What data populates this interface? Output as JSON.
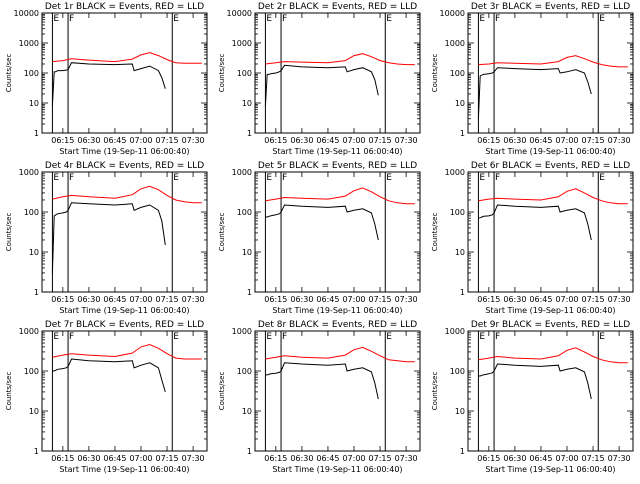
{
  "chart_data": [
    {
      "type": "line",
      "title": "Det 1r BLACK = Events, RED = LLD",
      "ylabel": "Counts/sec",
      "xlabel": "Start Time (19-Sep-11 06:00:40)",
      "yscale": "log",
      "ylim": [
        1,
        10000
      ],
      "y_ticks": [
        "1",
        "10",
        "100",
        "1000",
        "10000"
      ],
      "xlim": [
        "06:03",
        "07:38"
      ],
      "x_ticks": [
        "06:15",
        "06:30",
        "06:45",
        "07:00",
        "07:15",
        "07:30"
      ],
      "markers": [
        {
          "time": "06:09",
          "label": "E"
        },
        {
          "time": "06:18",
          "label": "F"
        },
        {
          "time": "07:18",
          "label": "E"
        }
      ],
      "series": [
        {
          "color": "#ff0000",
          "x": [
            "06:09",
            "06:15",
            "06:20",
            "06:30",
            "06:45",
            "06:55",
            "07:00",
            "07:05",
            "07:10",
            "07:15",
            "07:20",
            "07:25",
            "07:30",
            "07:35"
          ],
          "values": [
            240,
            260,
            300,
            270,
            240,
            290,
            400,
            480,
            380,
            280,
            220,
            210,
            210,
            210
          ]
        },
        {
          "color": "#000000",
          "x": [
            "06:09",
            "06:10",
            "06:11",
            "06:12",
            "06:15",
            "06:17",
            "06:18",
            "06:20",
            "06:30",
            "06:45",
            "06:55",
            "06:56",
            "07:00",
            "07:05",
            "07:10",
            "07:12",
            "07:14"
          ],
          "values": [
            8,
            110,
            110,
            120,
            120,
            125,
            130,
            220,
            200,
            190,
            200,
            120,
            140,
            170,
            120,
            70,
            30
          ]
        }
      ]
    },
    {
      "type": "line",
      "title": "Det 2r BLACK = Events, RED = LLD",
      "ylabel": "Counts/sec",
      "xlabel": "Start Time (19-Sep-11 06:00:40)",
      "yscale": "log",
      "ylim": [
        1,
        10000
      ],
      "y_ticks": [
        "1",
        "10",
        "100",
        "1000",
        "10000"
      ],
      "xlim": [
        "06:03",
        "07:38"
      ],
      "x_ticks": [
        "06:15",
        "06:30",
        "06:45",
        "07:00",
        "07:15",
        "07:30"
      ],
      "markers": [
        {
          "time": "06:09",
          "label": "E"
        },
        {
          "time": "06:18",
          "label": "F"
        },
        {
          "time": "07:18",
          "label": "E"
        }
      ],
      "series": [
        {
          "color": "#ff0000",
          "x": [
            "06:09",
            "06:15",
            "06:20",
            "06:30",
            "06:45",
            "06:55",
            "07:00",
            "07:05",
            "07:10",
            "07:15",
            "07:20",
            "07:25",
            "07:30",
            "07:35"
          ],
          "values": [
            200,
            220,
            240,
            230,
            220,
            260,
            380,
            440,
            350,
            260,
            220,
            200,
            190,
            190
          ]
        },
        {
          "color": "#000000",
          "x": [
            "06:09",
            "06:10",
            "06:11",
            "06:12",
            "06:15",
            "06:17",
            "06:18",
            "06:20",
            "06:30",
            "06:45",
            "06:55",
            "06:56",
            "07:00",
            "07:05",
            "07:10",
            "07:12",
            "07:14"
          ],
          "values": [
            8,
            90,
            90,
            95,
            100,
            110,
            120,
            180,
            160,
            150,
            160,
            110,
            130,
            150,
            110,
            60,
            18
          ]
        }
      ]
    },
    {
      "type": "line",
      "title": "Det 3r BLACK = Events, RED = LLD",
      "ylabel": "Counts/sec",
      "xlabel": "Start Time (19-Sep-11 06:00:40)",
      "yscale": "log",
      "ylim": [
        1,
        10000
      ],
      "y_ticks": [
        "1",
        "10",
        "100",
        "1000",
        "10000"
      ],
      "xlim": [
        "06:03",
        "07:38"
      ],
      "x_ticks": [
        "06:15",
        "06:30",
        "06:45",
        "07:00",
        "07:15",
        "07:30"
      ],
      "markers": [
        {
          "time": "06:09",
          "label": "E"
        },
        {
          "time": "06:18",
          "label": "F"
        },
        {
          "time": "07:18",
          "label": "E"
        }
      ],
      "series": [
        {
          "color": "#ff0000",
          "x": [
            "06:09",
            "06:15",
            "06:20",
            "06:30",
            "06:45",
            "06:55",
            "07:00",
            "07:05",
            "07:10",
            "07:15",
            "07:20",
            "07:25",
            "07:30",
            "07:35"
          ],
          "values": [
            190,
            200,
            220,
            210,
            200,
            240,
            330,
            380,
            300,
            230,
            190,
            170,
            160,
            160
          ]
        },
        {
          "color": "#000000",
          "x": [
            "06:09",
            "06:10",
            "06:11",
            "06:12",
            "06:15",
            "06:17",
            "06:18",
            "06:20",
            "06:30",
            "06:45",
            "06:55",
            "06:56",
            "07:00",
            "07:05",
            "07:10",
            "07:12",
            "07:14"
          ],
          "values": [
            3,
            80,
            85,
            90,
            95,
            100,
            110,
            150,
            140,
            130,
            140,
            100,
            110,
            130,
            100,
            50,
            20
          ]
        }
      ]
    },
    {
      "type": "line",
      "title": "Det 4r BLACK = Events, RED = LLD",
      "ylabel": "Counts/sec",
      "xlabel": "Start Time (19-Sep-11 06:00:40)",
      "yscale": "log",
      "ylim": [
        1,
        1000
      ],
      "y_ticks": [
        "1",
        "10",
        "100",
        "1000"
      ],
      "xlim": [
        "06:03",
        "07:38"
      ],
      "x_ticks": [
        "06:15",
        "06:30",
        "06:45",
        "07:00",
        "07:15",
        "07:30"
      ],
      "markers": [
        {
          "time": "06:09",
          "label": "E"
        },
        {
          "time": "06:18",
          "label": "F"
        },
        {
          "time": "07:18",
          "label": "E"
        }
      ],
      "series": [
        {
          "color": "#ff0000",
          "x": [
            "06:09",
            "06:15",
            "06:20",
            "06:30",
            "06:45",
            "06:55",
            "07:00",
            "07:05",
            "07:10",
            "07:15",
            "07:20",
            "07:25",
            "07:30",
            "07:35"
          ],
          "values": [
            210,
            240,
            260,
            240,
            220,
            270,
            380,
            440,
            360,
            260,
            200,
            180,
            170,
            170
          ]
        },
        {
          "color": "#000000",
          "x": [
            "06:09",
            "06:10",
            "06:11",
            "06:12",
            "06:15",
            "06:17",
            "06:18",
            "06:20",
            "06:30",
            "06:45",
            "06:55",
            "06:56",
            "07:00",
            "07:05",
            "07:10",
            "07:12",
            "07:14"
          ],
          "values": [
            3,
            80,
            85,
            90,
            95,
            100,
            110,
            170,
            160,
            150,
            160,
            110,
            130,
            150,
            110,
            60,
            15
          ]
        }
      ]
    },
    {
      "type": "line",
      "title": "Det 5r BLACK = Events, RED = LLD",
      "ylabel": "Counts/sec",
      "xlabel": "Start Time (19-Sep-11 06:00:40)",
      "yscale": "log",
      "ylim": [
        1,
        1000
      ],
      "y_ticks": [
        "1",
        "10",
        "100",
        "1000"
      ],
      "xlim": [
        "06:03",
        "07:38"
      ],
      "x_ticks": [
        "06:15",
        "06:30",
        "06:45",
        "07:00",
        "07:15",
        "07:30"
      ],
      "markers": [
        {
          "time": "06:09",
          "label": "E"
        },
        {
          "time": "06:18",
          "label": "F"
        },
        {
          "time": "07:18",
          "label": "E"
        }
      ],
      "series": [
        {
          "color": "#ff0000",
          "x": [
            "06:09",
            "06:15",
            "06:20",
            "06:30",
            "06:45",
            "06:55",
            "07:00",
            "07:05",
            "07:10",
            "07:15",
            "07:20",
            "07:25",
            "07:30",
            "07:35"
          ],
          "values": [
            190,
            210,
            230,
            220,
            210,
            250,
            340,
            400,
            320,
            240,
            190,
            170,
            160,
            160
          ]
        },
        {
          "color": "#000000",
          "x": [
            "06:09",
            "06:10",
            "06:11",
            "06:12",
            "06:15",
            "06:17",
            "06:18",
            "06:20",
            "06:30",
            "06:45",
            "06:55",
            "06:56",
            "07:00",
            "07:05",
            "07:10",
            "07:12",
            "07:14"
          ],
          "values": [
            75,
            75,
            78,
            80,
            85,
            90,
            100,
            150,
            140,
            130,
            140,
            100,
            110,
            120,
            95,
            50,
            20
          ]
        }
      ]
    },
    {
      "type": "line",
      "title": "Det 6r BLACK = Events, RED = LLD",
      "ylabel": "Counts/sec",
      "xlabel": "Start Time (19-Sep-11 06:00:40)",
      "yscale": "log",
      "ylim": [
        1,
        1000
      ],
      "y_ticks": [
        "1",
        "10",
        "100",
        "1000"
      ],
      "xlim": [
        "06:03",
        "07:38"
      ],
      "x_ticks": [
        "06:15",
        "06:30",
        "06:45",
        "07:00",
        "07:15",
        "07:30"
      ],
      "markers": [
        {
          "time": "06:09",
          "label": "E"
        },
        {
          "time": "06:18",
          "label": "F"
        },
        {
          "time": "07:18",
          "label": "E"
        }
      ],
      "series": [
        {
          "color": "#ff0000",
          "x": [
            "06:09",
            "06:15",
            "06:20",
            "06:30",
            "06:45",
            "06:55",
            "07:00",
            "07:05",
            "07:10",
            "07:15",
            "07:20",
            "07:25",
            "07:30",
            "07:35"
          ],
          "values": [
            190,
            210,
            220,
            210,
            200,
            240,
            330,
            380,
            300,
            230,
            190,
            170,
            160,
            160
          ]
        },
        {
          "color": "#000000",
          "x": [
            "06:09",
            "06:10",
            "06:11",
            "06:12",
            "06:15",
            "06:17",
            "06:18",
            "06:20",
            "06:30",
            "06:45",
            "06:55",
            "06:56",
            "07:00",
            "07:05",
            "07:10",
            "07:12",
            "07:14"
          ],
          "values": [
            70,
            72,
            75,
            78,
            80,
            85,
            95,
            150,
            140,
            130,
            140,
            100,
            110,
            120,
            95,
            50,
            20
          ]
        }
      ]
    },
    {
      "type": "line",
      "title": "Det 7r BLACK = Events, RED = LLD",
      "ylabel": "Counts/sec",
      "xlabel": "Start Time (19-Sep-11 06:00:40)",
      "yscale": "log",
      "ylim": [
        1,
        1000
      ],
      "y_ticks": [
        "1",
        "10",
        "100",
        "1000"
      ],
      "xlim": [
        "06:03",
        "07:38"
      ],
      "x_ticks": [
        "06:15",
        "06:30",
        "06:45",
        "07:00",
        "07:15",
        "07:30"
      ],
      "markers": [
        {
          "time": "06:09",
          "label": "E"
        },
        {
          "time": "06:18",
          "label": "F"
        },
        {
          "time": "07:18",
          "label": "E"
        }
      ],
      "series": [
        {
          "color": "#ff0000",
          "x": [
            "06:09",
            "06:15",
            "06:20",
            "06:30",
            "06:45",
            "06:55",
            "07:00",
            "07:05",
            "07:10",
            "07:15",
            "07:20",
            "07:25",
            "07:30",
            "07:35"
          ],
          "values": [
            220,
            250,
            270,
            250,
            230,
            280,
            400,
            460,
            370,
            270,
            210,
            200,
            200,
            200
          ]
        },
        {
          "color": "#000000",
          "x": [
            "06:09",
            "06:10",
            "06:11",
            "06:12",
            "06:15",
            "06:17",
            "06:18",
            "06:20",
            "06:30",
            "06:45",
            "06:55",
            "06:56",
            "07:00",
            "07:05",
            "07:10",
            "07:12",
            "07:14"
          ],
          "values": [
            100,
            100,
            105,
            110,
            115,
            120,
            130,
            200,
            180,
            170,
            180,
            120,
            140,
            160,
            120,
            60,
            30
          ]
        }
      ]
    },
    {
      "type": "line",
      "title": "Det 8r BLACK = Events, RED = LLD",
      "ylabel": "Counts/sec",
      "xlabel": "Start Time (19-Sep-11 06:00:40)",
      "yscale": "log",
      "ylim": [
        1,
        1000
      ],
      "y_ticks": [
        "1",
        "10",
        "100",
        "1000"
      ],
      "xlim": [
        "06:03",
        "07:38"
      ],
      "x_ticks": [
        "06:15",
        "06:30",
        "06:45",
        "07:00",
        "07:15",
        "07:30"
      ],
      "markers": [
        {
          "time": "06:09",
          "label": "E"
        },
        {
          "time": "06:18",
          "label": "F"
        },
        {
          "time": "07:18",
          "label": "E"
        }
      ],
      "series": [
        {
          "color": "#ff0000",
          "x": [
            "06:09",
            "06:15",
            "06:20",
            "06:30",
            "06:45",
            "06:55",
            "07:00",
            "07:05",
            "07:10",
            "07:15",
            "07:20",
            "07:25",
            "07:30",
            "07:35"
          ],
          "values": [
            200,
            220,
            240,
            220,
            210,
            250,
            340,
            390,
            310,
            240,
            190,
            180,
            170,
            170
          ]
        },
        {
          "color": "#000000",
          "x": [
            "06:09",
            "06:10",
            "06:11",
            "06:12",
            "06:15",
            "06:17",
            "06:18",
            "06:20",
            "06:30",
            "06:45",
            "06:55",
            "06:56",
            "07:00",
            "07:05",
            "07:10",
            "07:12",
            "07:14"
          ],
          "values": [
            80,
            80,
            82,
            85,
            88,
            92,
            100,
            160,
            150,
            140,
            150,
            100,
            110,
            120,
            95,
            50,
            20
          ]
        }
      ]
    },
    {
      "type": "line",
      "title": "Det 9r BLACK = Events, RED = LLD",
      "ylabel": "Counts/sec",
      "xlabel": "Start Time (19-Sep-11 06:00:40)",
      "yscale": "log",
      "ylim": [
        1,
        1000
      ],
      "y_ticks": [
        "1",
        "10",
        "100",
        "1000"
      ],
      "xlim": [
        "06:03",
        "07:38"
      ],
      "x_ticks": [
        "06:15",
        "06:30",
        "06:45",
        "07:00",
        "07:15",
        "07:30"
      ],
      "markers": [
        {
          "time": "06:09",
          "label": "E"
        },
        {
          "time": "06:18",
          "label": "F"
        },
        {
          "time": "07:18",
          "label": "E"
        }
      ],
      "series": [
        {
          "color": "#ff0000",
          "x": [
            "06:09",
            "06:15",
            "06:20",
            "06:30",
            "06:45",
            "06:55",
            "07:00",
            "07:05",
            "07:10",
            "07:15",
            "07:20",
            "07:25",
            "07:30",
            "07:35"
          ],
          "values": [
            190,
            210,
            230,
            210,
            200,
            240,
            330,
            380,
            300,
            230,
            190,
            170,
            160,
            160
          ]
        },
        {
          "color": "#000000",
          "x": [
            "06:09",
            "06:10",
            "06:11",
            "06:12",
            "06:15",
            "06:17",
            "06:18",
            "06:20",
            "06:30",
            "06:45",
            "06:55",
            "06:56",
            "07:00",
            "07:05",
            "07:10",
            "07:12",
            "07:14"
          ],
          "values": [
            75,
            75,
            78,
            80,
            85,
            90,
            100,
            150,
            140,
            130,
            140,
            100,
            110,
            120,
            95,
            50,
            20
          ]
        }
      ]
    }
  ]
}
